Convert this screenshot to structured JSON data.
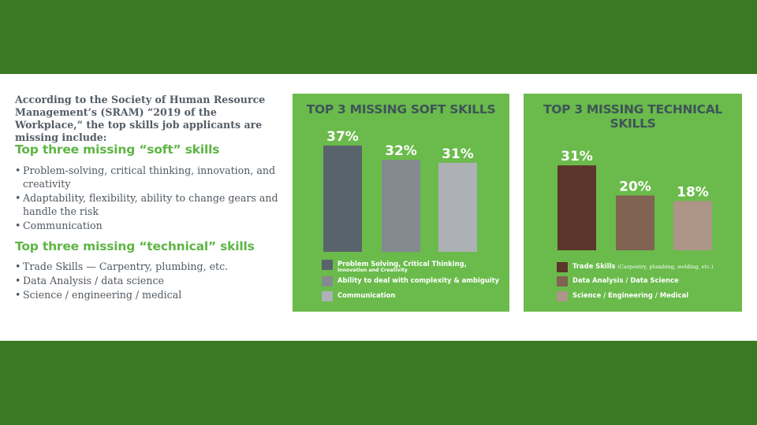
{
  "intro": "According to the Society of Human Resource Management’s (SRAM) “2019 of the Workplace,” the top skills job applicants are missing include:",
  "soft_heading": "Top three missing “soft” skills",
  "soft_items": [
    "Problem-solving, critical thinking, innovation, and creativity",
    "Adaptability, flexibility, ability to change gears and handle the risk",
    "Communication"
  ],
  "tech_heading": "Top three missing “technical” skills",
  "tech_items": [
    "Trade Skills — Carpentry, plumbing, etc.",
    "Data Analysis / data science",
    "Science / engineering / medical"
  ],
  "colors": {
    "band": "#3a7a22",
    "panel": "#6abb4b",
    "heading_green": "#5eb544"
  },
  "chart_data": [
    {
      "type": "bar",
      "title": "TOP 3 MISSING SOFT SKILLS",
      "ylim": [
        0,
        40
      ],
      "legend_position": "bottom",
      "series": [
        {
          "name": "Problem Solving, Critical Thinking,",
          "subname": "Innovation and Creativity",
          "value": 37,
          "label": "37%",
          "color": "#59636b"
        },
        {
          "name": "Ability to deal with complexity & ambiguity",
          "value": 32,
          "label": "32%",
          "color": "#858a91"
        },
        {
          "name": "Communication",
          "value": 31,
          "label": "31%",
          "color": "#adb0b5"
        }
      ]
    },
    {
      "type": "bar",
      "title": "TOP 3 MISSING TECHNICAL SKILLS",
      "ylim": [
        0,
        40
      ],
      "legend_position": "bottom",
      "series": [
        {
          "name": "Trade Skills",
          "note": "(Carpentry, plumbing, welding, etc.)",
          "value": 31,
          "label": "31%",
          "color": "#5b352a"
        },
        {
          "name": "Data Analysis / Data Science",
          "value": 20,
          "label": "20%",
          "color": "#806353"
        },
        {
          "name": "Science / Engineering /  Medical",
          "value": 18,
          "label": "18%",
          "color": "#ad9587"
        }
      ]
    }
  ]
}
